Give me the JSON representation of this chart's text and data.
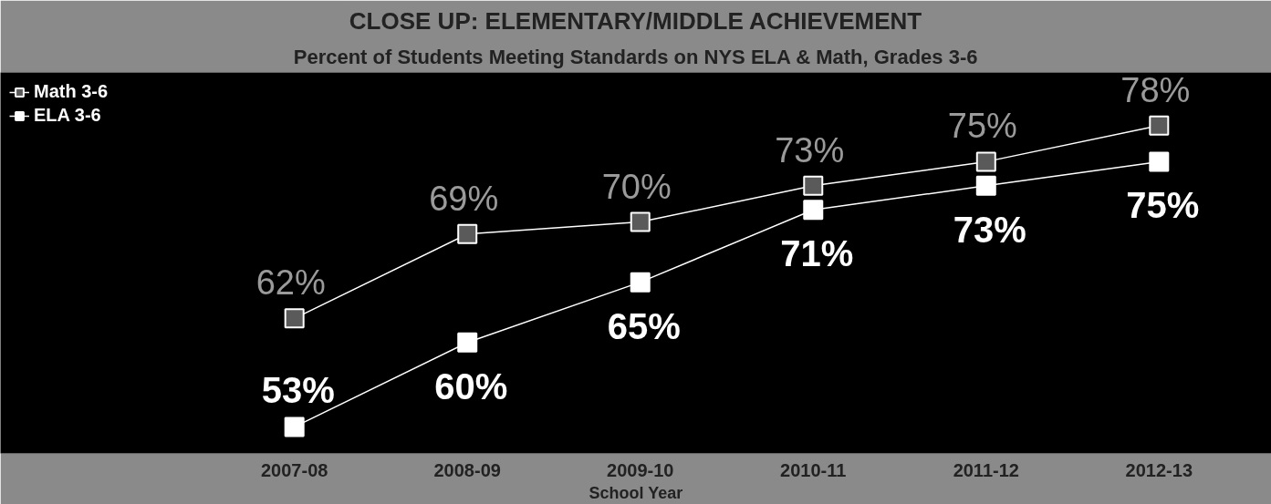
{
  "chart_data": {
    "type": "line",
    "title": "CLOSE UP: ELEMENTARY/MIDDLE ACHIEVEMENT",
    "subtitle": "Percent of Students Meeting Standards on NYS ELA & Math, Grades 3-6",
    "xlabel": "School Year",
    "categories": [
      "2007-08",
      "2008-09",
      "2009-10",
      "2010-11",
      "2011-12",
      "2012-13"
    ],
    "series": [
      {
        "name": "Math 3-6",
        "color": "#5a5a5a",
        "values": [
          62,
          69,
          70,
          73,
          75,
          78
        ],
        "value_labels": [
          "62%",
          "69%",
          "70%",
          "73%",
          "75%",
          "78%"
        ]
      },
      {
        "name": "ELA 3-6",
        "color": "#ffffff",
        "values": [
          53,
          60,
          65,
          71,
          73,
          75
        ],
        "value_labels": [
          "53%",
          "60%",
          "65%",
          "71%",
          "73%",
          "75%"
        ]
      }
    ],
    "legend": "top left",
    "marker": "square",
    "grid": false
  }
}
